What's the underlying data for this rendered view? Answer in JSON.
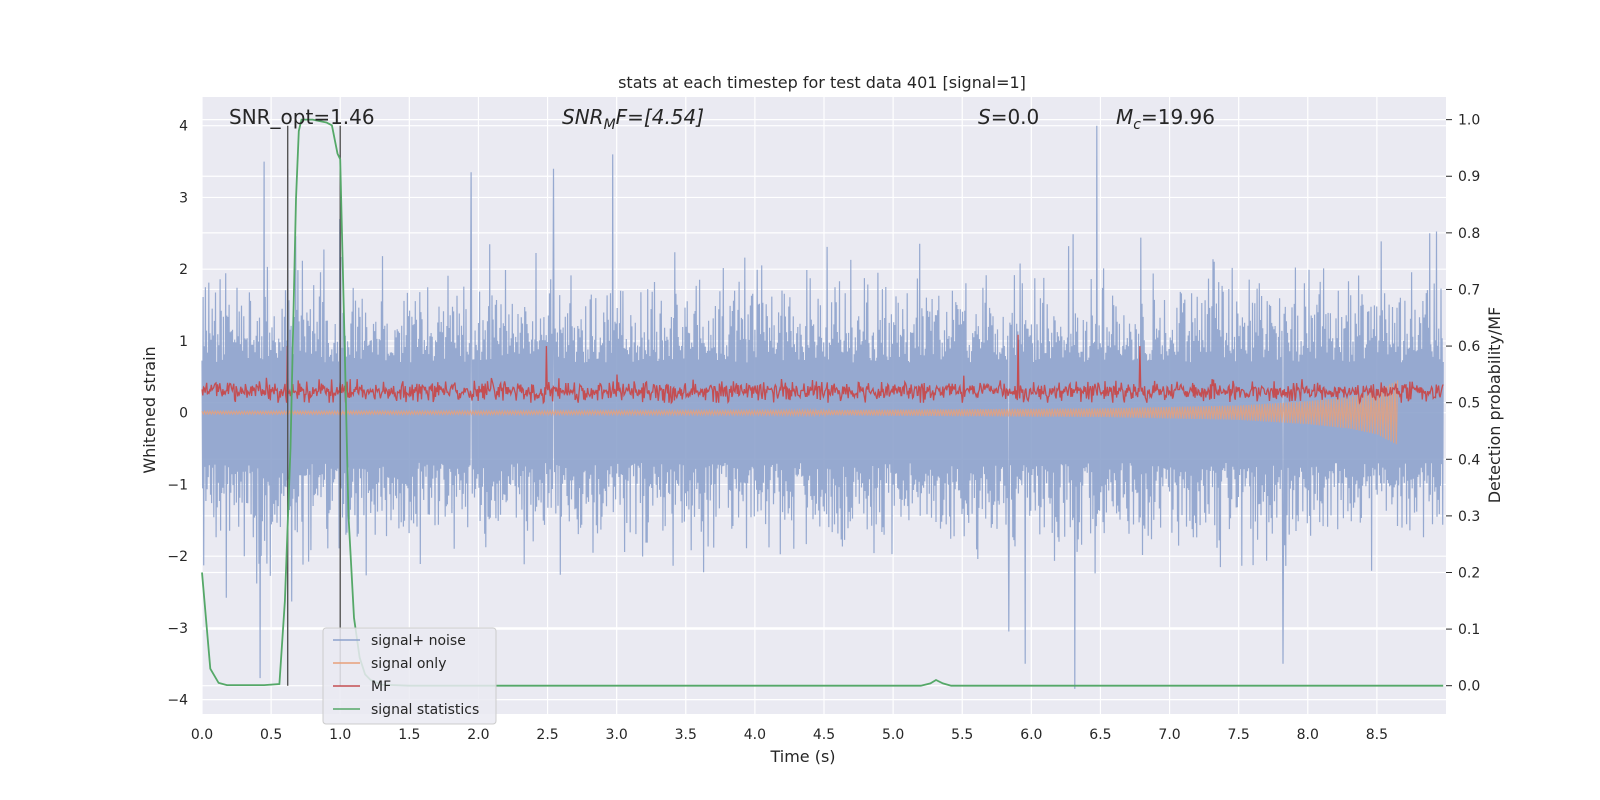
{
  "chart_data": {
    "type": "line",
    "title": "stats at each timestep for test data 401 [signal=1]",
    "xlabel": "Time (s)",
    "ylabel_left": "Whitened strain",
    "ylabel_right": "Detection probability/MF",
    "xlim": [
      0.0,
      9.0
    ],
    "ylim_left": [
      -4.2,
      4.4
    ],
    "ylim_right": [
      -0.05,
      1.04
    ],
    "xticks": [
      "0.0",
      "0.5",
      "1.0",
      "1.5",
      "2.0",
      "2.5",
      "3.0",
      "3.5",
      "4.0",
      "4.5",
      "5.0",
      "5.5",
      "6.0",
      "6.5",
      "7.0",
      "7.5",
      "8.0",
      "8.5"
    ],
    "yticks_left": [
      "4",
      "3",
      "2",
      "1",
      "0",
      "−1",
      "−2",
      "−3",
      "−4"
    ],
    "yticks_right": [
      "1.0",
      "0.9",
      "0.8",
      "0.7",
      "0.6",
      "0.5",
      "0.4",
      "0.3",
      "0.2",
      "0.1",
      "0.0"
    ],
    "grid": true,
    "legend_position": "lower-left",
    "annotations": {
      "snr_opt": "SNR_opt=1.46",
      "snr_mf_pre": "SNR",
      "snr_mf_sub": "M",
      "snr_mf_post": "F=[4.54]",
      "s_pre": "S",
      "s_post": "=0.0",
      "mc_pre": "M",
      "mc_sub": "c",
      "mc_post": "=19.96"
    },
    "vertical_markers_x": [
      0.62,
      1.0
    ],
    "series": [
      {
        "name": "signal+ noise",
        "color": "#8da2cc",
        "axis": "left",
        "description": "whitened noisy strain, roughly symmetric about 0, typical excursion within ±2.5, peaks near ±4",
        "peaks": [
          [
            0.42,
            -3.7
          ],
          [
            0.45,
            3.5
          ],
          [
            0.62,
            3.4
          ],
          [
            1.0,
            2.7
          ],
          [
            1.95,
            3.35
          ],
          [
            2.55,
            3.4
          ],
          [
            2.98,
            3.6
          ],
          [
            5.85,
            -3.05
          ],
          [
            5.97,
            -3.5
          ],
          [
            6.33,
            -3.85
          ],
          [
            6.49,
            4.0
          ],
          [
            7.84,
            -3.5
          ],
          [
            8.9,
            2.5
          ]
        ]
      },
      {
        "name": "signal only",
        "color": "#e8a07a",
        "axis": "left",
        "description": "chirp signal growing toward merger near 8.65 s",
        "envelope": [
          [
            0.0,
            0.02
          ],
          [
            4.0,
            0.03
          ],
          [
            6.5,
            0.06
          ],
          [
            7.5,
            0.1
          ],
          [
            8.0,
            0.16
          ],
          [
            8.3,
            0.22
          ],
          [
            8.5,
            0.3
          ],
          [
            8.6,
            0.4
          ],
          [
            8.65,
            0.45
          ]
        ]
      },
      {
        "name": "MF",
        "color": "#c44e52",
        "axis": "right",
        "description": "matched filter output fluctuating about 0.52",
        "baseline": 0.52,
        "band": [
          0.5,
          0.58
        ],
        "peaks": [
          [
            0.62,
            0.6
          ],
          [
            2.5,
            0.6
          ],
          [
            5.92,
            0.62
          ],
          [
            6.8,
            0.6
          ]
        ]
      },
      {
        "name": "signal statistics",
        "color": "#55a868",
        "axis": "right",
        "x": [
          0.0,
          0.06,
          0.12,
          0.18,
          0.3,
          0.45,
          0.56,
          0.6,
          0.64,
          0.68,
          0.7,
          0.72,
          0.76,
          0.8,
          0.9,
          0.94,
          0.98,
          1.0,
          1.03,
          1.06,
          1.1,
          1.14,
          1.18,
          1.22,
          1.3,
          1.5,
          5.2,
          5.27,
          5.31,
          5.36,
          5.42,
          5.5,
          8.98
        ],
        "y": [
          0.2,
          0.03,
          0.005,
          0.001,
          0.001,
          0.001,
          0.003,
          0.15,
          0.42,
          0.86,
          0.98,
          1.0,
          1.0,
          1.0,
          0.995,
          0.99,
          0.94,
          0.93,
          0.62,
          0.3,
          0.12,
          0.05,
          0.02,
          0.01,
          0.002,
          0.0,
          0.0,
          0.004,
          0.01,
          0.004,
          0.0,
          0.0,
          0.0
        ]
      }
    ]
  }
}
